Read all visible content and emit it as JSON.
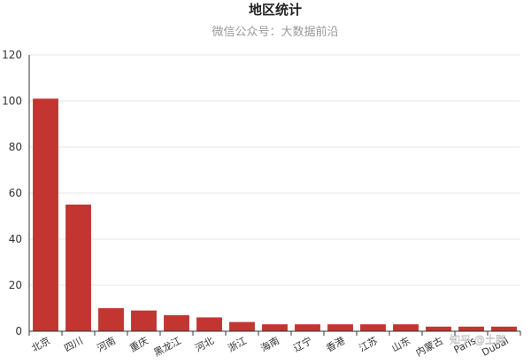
{
  "chart_data": {
    "type": "bar",
    "title": "地区统计",
    "subtitle": "微信公众号：大数据前沿",
    "xlabel": "",
    "ylabel": "",
    "ylim": [
      0,
      120
    ],
    "yticks": [
      0,
      20,
      40,
      60,
      80,
      100,
      120
    ],
    "grid": true,
    "categories": [
      "北京",
      "四川",
      "河南",
      "重庆",
      "黑龙江",
      "河北",
      "浙江",
      "海南",
      "辽宁",
      "香港",
      "江苏",
      "山东",
      "内蒙古",
      "Paris",
      "Dubai"
    ],
    "values": [
      101,
      55,
      10,
      9,
      7,
      6,
      4,
      3,
      3,
      3,
      3,
      3,
      2,
      2,
      2
    ],
    "bar_color": "#c23531",
    "watermark": "知乎 @土胖"
  }
}
